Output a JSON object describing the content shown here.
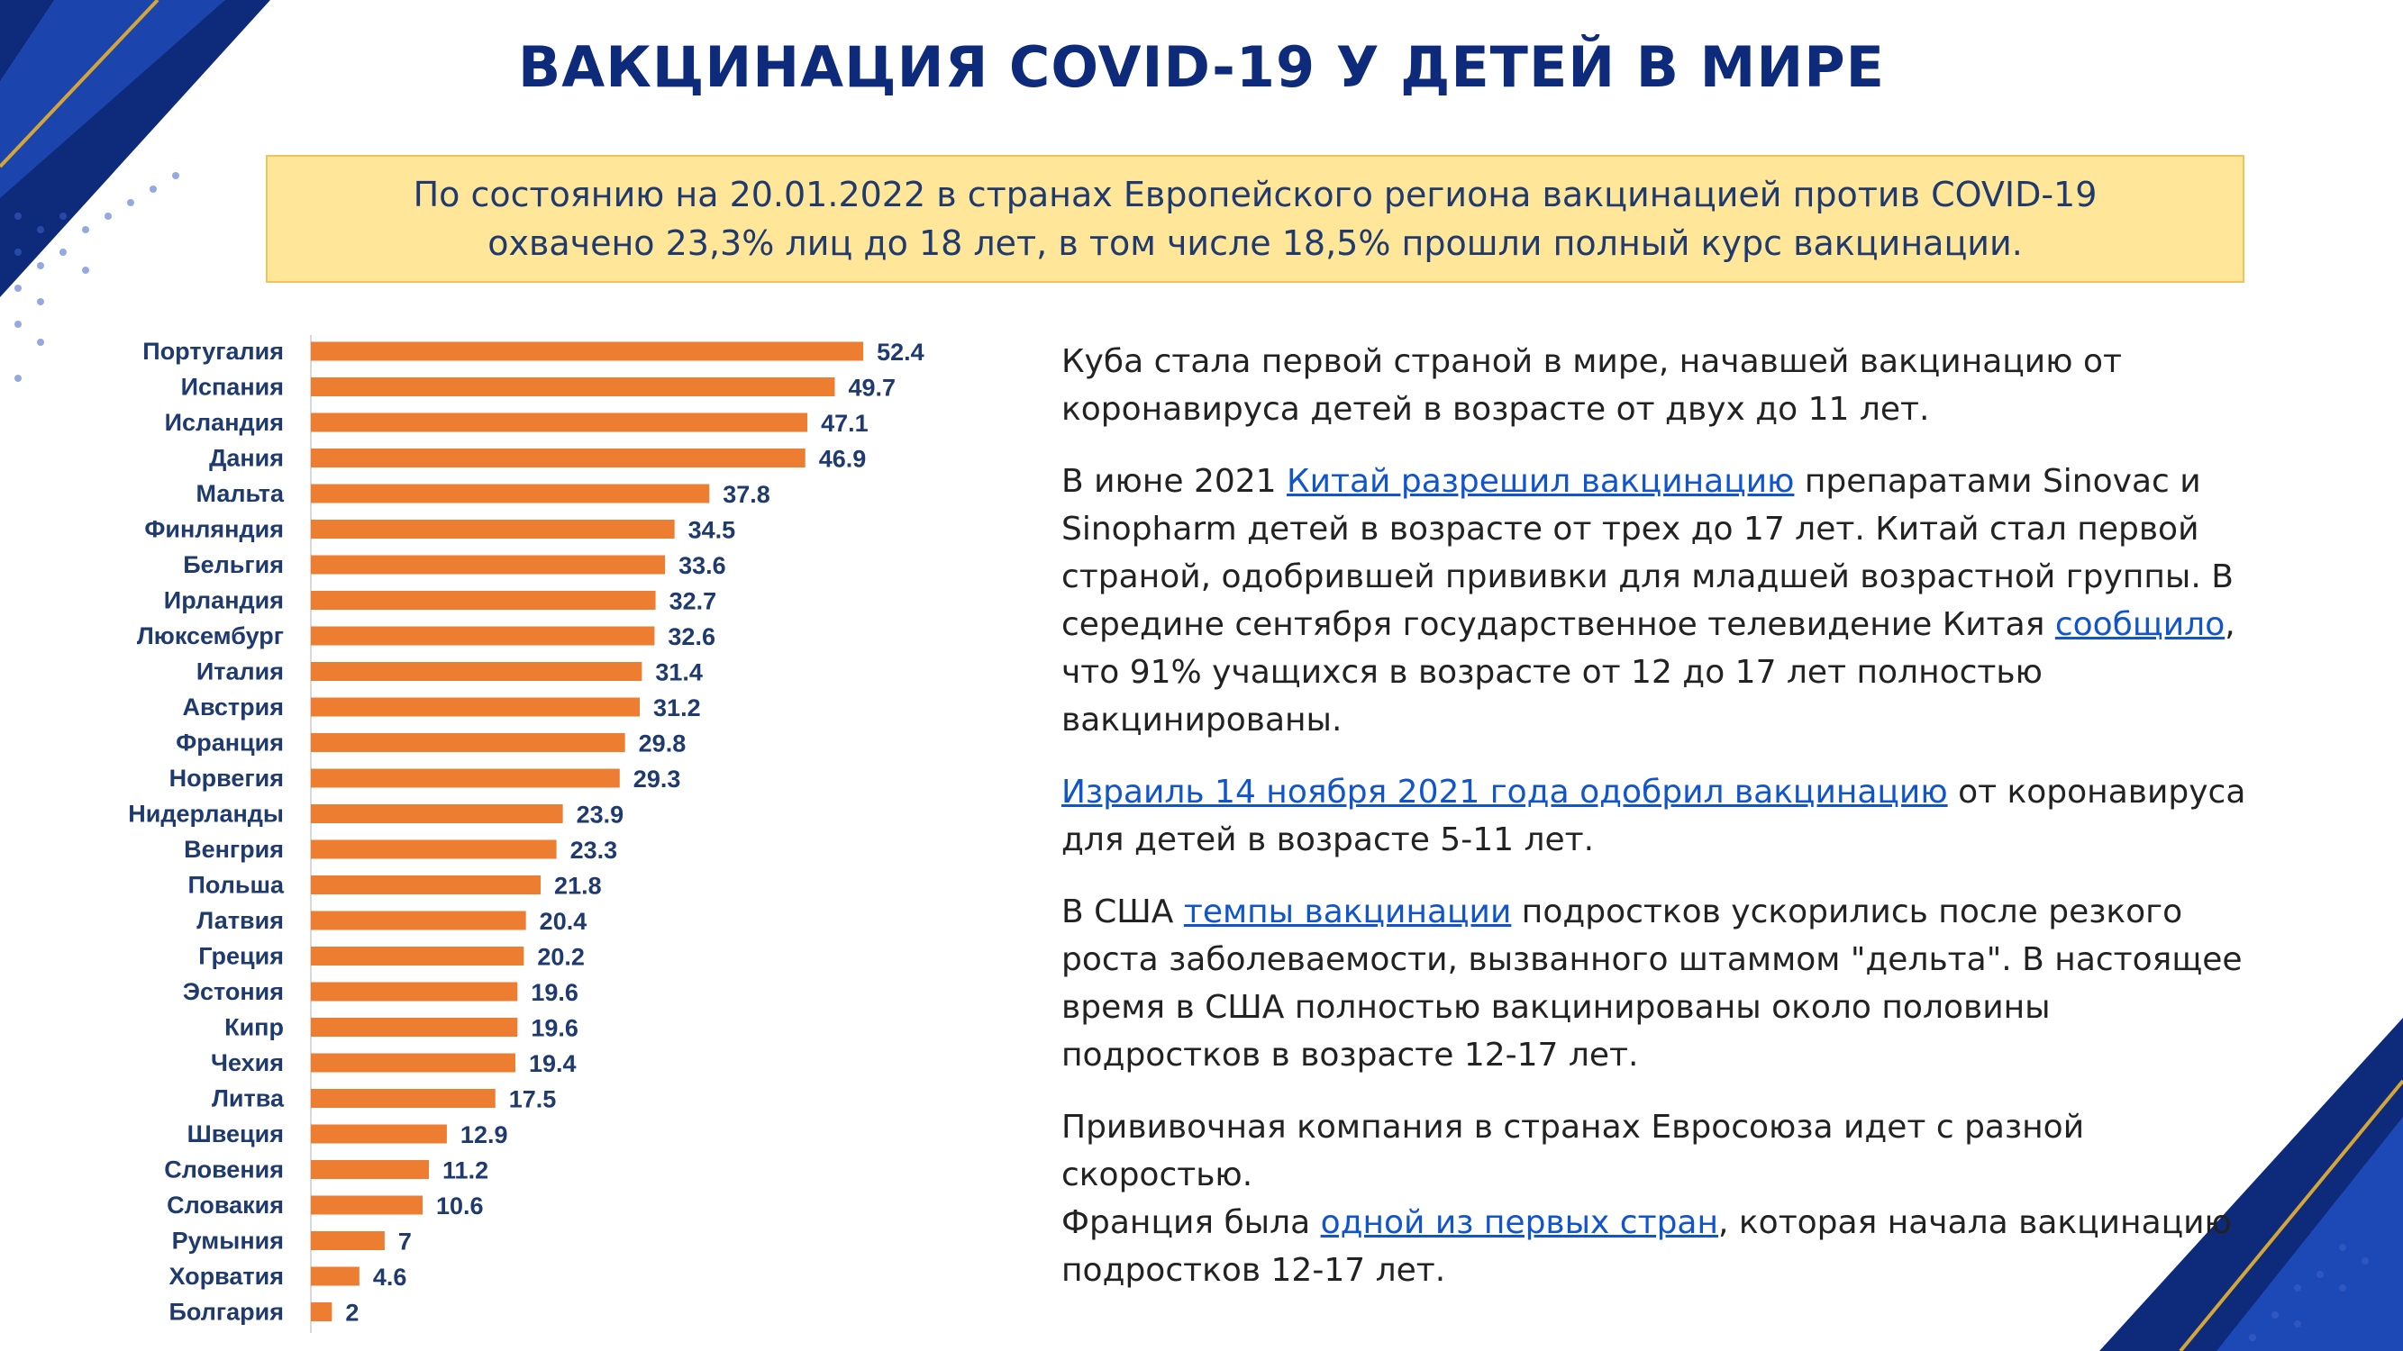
{
  "title": "ВАКЦИНАЦИЯ COVID-19 У ДЕТЕЙ В МИРЕ",
  "summary": {
    "line1": "По состоянию на 20.01.2022 в странах Европейского региона вакцинацией против COVID-19",
    "line2": "охвачено 23,3% лиц до 18 лет, в том числе 18,5% прошли полный курс вакцинации."
  },
  "chart_data": {
    "type": "bar",
    "orientation": "horizontal",
    "categories": [
      "Португалия",
      "Испания",
      "Исландия",
      "Дания",
      "Мальта",
      "Финляндия",
      "Бельгия",
      "Ирландия",
      "Люксембург",
      "Италия",
      "Австрия",
      "Франция",
      "Норвегия",
      "Нидерланды",
      "Венгрия",
      "Польша",
      "Латвия",
      "Греция",
      "Эстония",
      "Кипр",
      "Чехия",
      "Литва",
      "Швеция",
      "Словения",
      "Словакия",
      "Румыния",
      "Хорватия",
      "Болгария"
    ],
    "values": [
      52.4,
      49.7,
      47.1,
      46.9,
      37.8,
      34.5,
      33.6,
      32.7,
      32.6,
      31.4,
      31.2,
      29.8,
      29.3,
      23.9,
      23.3,
      21.8,
      20.4,
      20.2,
      19.6,
      19.6,
      19.4,
      17.5,
      12.9,
      11.2,
      10.6,
      7,
      4.6,
      2
    ],
    "value_labels": [
      "52.4",
      "49.7",
      "47.1",
      "46.9",
      "37.8",
      "34.5",
      "33.6",
      "32.7",
      "32.6",
      "31.4",
      "31.2",
      "29.8",
      "29.3",
      "23.9",
      "23.3",
      "21.8",
      "20.4",
      "20.2",
      "19.6",
      "19.6",
      "19.4",
      "17.5",
      "12.9",
      "11.2",
      "10.6",
      "7",
      "4.6",
      "2"
    ],
    "bar_color": "#ed7d31",
    "label_color": "#1f3a6e",
    "grid": false
  },
  "paragraphs": {
    "p1": "Куба стала первой страной в мире, начавшей вакцинацию от коронавируса детей в возрасте от двух до 11 лет.",
    "p2_a": "В июне 2021 ",
    "p2_link1": "Китай разрешил вакцинацию",
    "p2_b": " препаратами Sinovac и Sinopharm детей в возрасте от трех до 17 лет. Китай стал первой страной, одобрившей прививки для младшей возрастной группы. В середине сентября государственное телевидение Китая ",
    "p2_link2": "сообщило",
    "p2_c": ", что 91% учащихся в возрасте от 12 до 17 лет полностью вакцинированы.",
    "p3_link": "Израиль 14 ноября 2021 года одобрил вакцинацию",
    "p3_b": " от коронавируса для детей в возрасте 5-11 лет.",
    "p4_a": "В США ",
    "p4_link": "темпы вакцинации",
    "p4_b": " подростков ускорились после резкого роста заболеваемости, вызванного штаммом \"дельта\". В настоящее время в США полностью вакцинированы около половины подростков в возрасте 12-17 лет.",
    "p5": "Прививочная компания в странах Евросоюза идет с разной скоростью.",
    "p6_a": "Франция была ",
    "p6_link": "одной из первых стран",
    "p6_b": ", которая начала вакцинацию подростков 12-17 лет."
  },
  "colors": {
    "navy": "#0e2a7a",
    "gold": "#d4a63a",
    "link": "#1155cc",
    "highlight": "#ffe699"
  }
}
